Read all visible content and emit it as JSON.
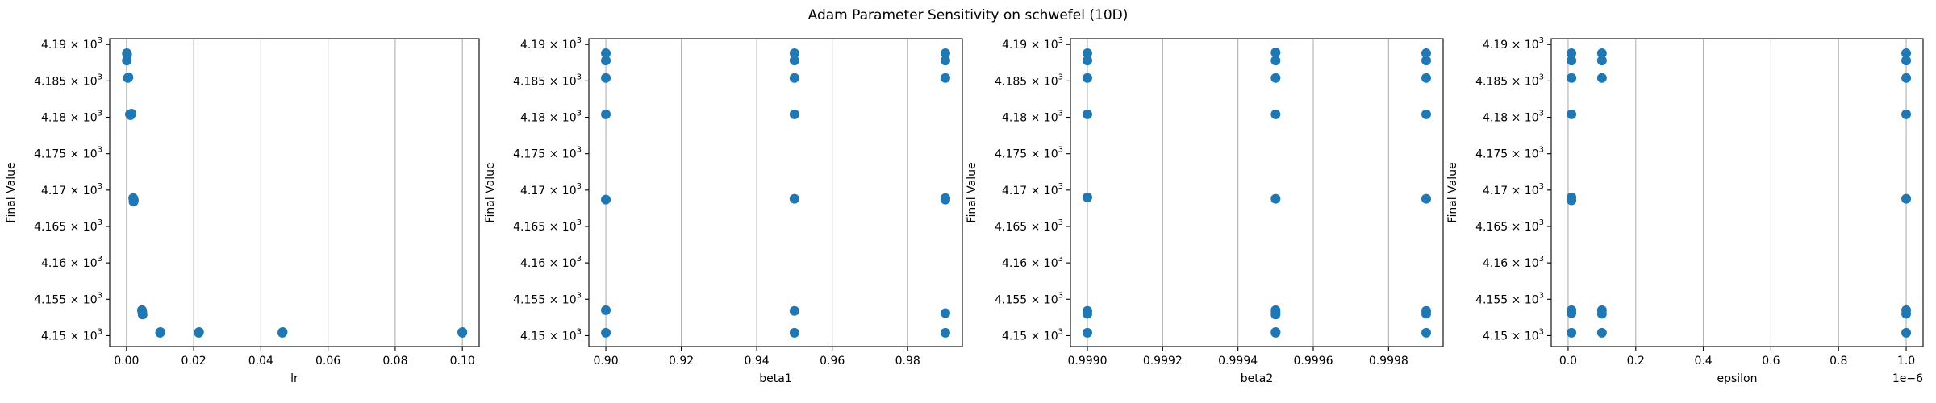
{
  "suptitle": "Adam Parameter Sensitivity on schwefel (10D)",
  "chart_data": [
    {
      "type": "scatter",
      "xlabel": "lr",
      "ylabel": "Final Value",
      "xlim": [
        -0.005,
        0.105
      ],
      "ylim": [
        4148.5,
        4190.8
      ],
      "xticks": [
        0.0,
        0.02,
        0.04,
        0.06,
        0.08,
        0.1
      ],
      "xtick_labels": [
        "0.00",
        "0.02",
        "0.04",
        "0.06",
        "0.08",
        "0.10"
      ],
      "xtick_offset_label": "",
      "grid": "x",
      "series": [
        {
          "color": "#1f77b4",
          "x": [
            0.0001,
            0.0001,
            0.0002,
            0.0004,
            0.0006,
            0.001,
            0.0012,
            0.0015,
            0.002,
            0.0022,
            0.0021,
            0.0047,
            0.0048,
            0.0046,
            0.01,
            0.0101,
            0.0215,
            0.0216,
            0.0464,
            0.0465,
            0.1,
            0.1
          ],
          "y": [
            4188.8,
            4187.8,
            4188.6,
            4185.4,
            4185.5,
            4180.4,
            4180.3,
            4180.5,
            4168.9,
            4168.6,
            4168.4,
            4153.3,
            4152.9,
            4153.5,
            4150.4,
            4150.5,
            4150.4,
            4150.5,
            4150.4,
            4150.5,
            4150.4,
            4150.5
          ]
        }
      ]
    },
    {
      "type": "scatter",
      "xlabel": "beta1",
      "ylabel": "Final Value",
      "xlim": [
        0.8955,
        0.9945
      ],
      "ylim": [
        4148.5,
        4190.8
      ],
      "xticks": [
        0.9,
        0.92,
        0.94,
        0.96,
        0.98
      ],
      "xtick_labels": [
        "0.90",
        "0.92",
        "0.94",
        "0.96",
        "0.98"
      ],
      "xtick_offset_label": "",
      "grid": "x",
      "series": [
        {
          "color": "#1f77b4",
          "x": [
            0.9,
            0.9,
            0.9,
            0.9,
            0.9,
            0.9,
            0.9,
            0.95,
            0.95,
            0.95,
            0.95,
            0.95,
            0.95,
            0.95,
            0.99,
            0.99,
            0.99,
            0.99,
            0.99,
            0.99,
            0.99
          ],
          "y": [
            4188.8,
            4187.8,
            4185.4,
            4180.4,
            4168.7,
            4153.5,
            4150.4,
            4188.8,
            4187.8,
            4185.4,
            4180.4,
            4168.8,
            4153.4,
            4150.4,
            4188.8,
            4187.8,
            4185.4,
            4168.9,
            4168.7,
            4153.1,
            4150.4
          ]
        }
      ]
    },
    {
      "type": "scatter",
      "xlabel": "beta2",
      "ylabel": "Final Value",
      "xlim": [
        0.998955,
        0.999945
      ],
      "ylim": [
        4148.5,
        4190.8
      ],
      "xticks": [
        0.999,
        0.9992,
        0.9994,
        0.9996,
        0.9998
      ],
      "xtick_labels": [
        "0.9990",
        "0.9992",
        "0.9994",
        "0.9996",
        "0.9998"
      ],
      "xtick_offset_label": "",
      "grid": "x",
      "series": [
        {
          "color": "#1f77b4",
          "x": [
            0.999,
            0.999,
            0.999,
            0.999,
            0.999,
            0.999,
            0.999,
            0.999,
            0.9995,
            0.9995,
            0.9995,
            0.9995,
            0.9995,
            0.9995,
            0.9995,
            0.9995,
            0.9995,
            0.9995,
            0.9999,
            0.9999,
            0.9999,
            0.9999,
            0.9999,
            0.9999,
            0.9999,
            0.9999
          ],
          "y": [
            4188.8,
            4187.8,
            4185.4,
            4180.4,
            4169.0,
            4153.4,
            4153.0,
            4150.4,
            4188.9,
            4187.8,
            4185.4,
            4180.4,
            4168.8,
            4153.5,
            4153.2,
            4152.9,
            4150.4,
            4150.5,
            4188.8,
            4187.8,
            4185.4,
            4180.4,
            4168.8,
            4153.4,
            4153.0,
            4150.4
          ]
        }
      ]
    },
    {
      "type": "scatter",
      "xlabel": "epsilon",
      "ylabel": "Final Value",
      "xlim": [
        -0.05,
        1.05
      ],
      "ylim": [
        4148.5,
        4190.8
      ],
      "xticks": [
        0.0,
        0.2,
        0.4,
        0.6,
        0.8,
        1.0
      ],
      "xtick_labels": [
        "0.0",
        "0.2",
        "0.4",
        "0.6",
        "0.8",
        "1.0"
      ],
      "xtick_offset_label": "1e−6",
      "grid": "x",
      "series": [
        {
          "color": "#1f77b4",
          "x": [
            0.01,
            0.01,
            0.01,
            0.01,
            0.01,
            0.01,
            0.01,
            0.01,
            0.01,
            0.1,
            0.1,
            0.1,
            0.1,
            0.1,
            0.1,
            1.0,
            1.0,
            1.0,
            1.0,
            1.0,
            1.0,
            1.0,
            1.0
          ],
          "y": [
            4188.8,
            4187.8,
            4185.4,
            4180.4,
            4169.0,
            4168.6,
            4153.5,
            4153.1,
            4150.4,
            4188.8,
            4187.8,
            4185.4,
            4153.5,
            4153.0,
            4150.4,
            4188.8,
            4187.8,
            4185.4,
            4180.4,
            4168.8,
            4153.5,
            4153.0,
            4150.4
          ]
        }
      ]
    }
  ],
  "y_tick_labels": [
    {
      "value": 4150,
      "mantissa": "4.15",
      "exp": "3"
    },
    {
      "value": 4155,
      "mantissa": "4.155",
      "exp": "3"
    },
    {
      "value": 4160,
      "mantissa": "4.16",
      "exp": "3"
    },
    {
      "value": 4165,
      "mantissa": "4.165",
      "exp": "3"
    },
    {
      "value": 4170,
      "mantissa": "4.17",
      "exp": "3"
    },
    {
      "value": 4175,
      "mantissa": "4.175",
      "exp": "3"
    },
    {
      "value": 4180,
      "mantissa": "4.18",
      "exp": "3"
    },
    {
      "value": 4185,
      "mantissa": "4.185",
      "exp": "3"
    },
    {
      "value": 4190,
      "mantissa": "4.19",
      "exp": "3"
    }
  ]
}
